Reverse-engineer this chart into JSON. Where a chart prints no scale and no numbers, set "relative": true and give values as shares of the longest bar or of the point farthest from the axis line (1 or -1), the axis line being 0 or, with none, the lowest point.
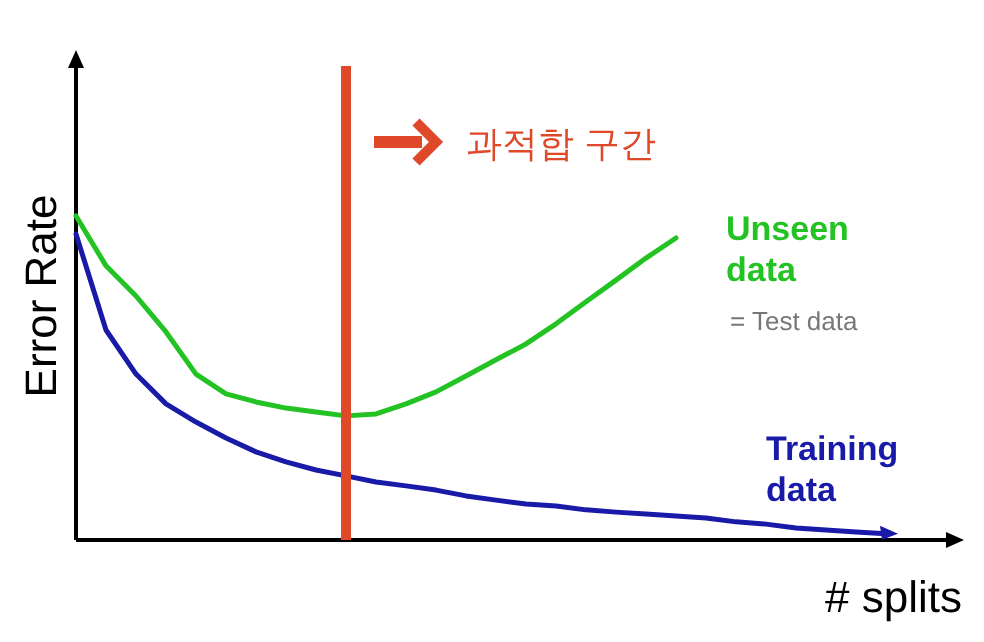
{
  "chart_data": {
    "type": "line",
    "relative": true,
    "xlabel": "# splits",
    "ylabel": "Error Rate",
    "categories": [
      null,
      null,
      null,
      null,
      null,
      null,
      null,
      null,
      null,
      null,
      null,
      null,
      null,
      null,
      null,
      null,
      null,
      null,
      null,
      null,
      null,
      null,
      null,
      null,
      null,
      null,
      null,
      null
    ],
    "series": [
      {
        "name": "Unseen\ndata",
        "color": "#22c322",
        "values": [
          1,
          0.846,
          0.753,
          0.642,
          0.512,
          0.451,
          0.426,
          0.407,
          0.395,
          0.383,
          0.389,
          0.42,
          0.457,
          0.506,
          0.556,
          0.605,
          0.667,
          0.735,
          0.802,
          0.87,
          0.932,
          null,
          null,
          null,
          null,
          null,
          null,
          null
        ]
      },
      {
        "name": "Training\ndata",
        "color": "#1a1aa8",
        "values": [
          0.944,
          0.648,
          0.512,
          0.42,
          0.364,
          0.315,
          0.272,
          0.241,
          0.216,
          0.198,
          0.179,
          0.167,
          0.154,
          0.136,
          0.123,
          0.111,
          0.105,
          0.093,
          0.086,
          0.08,
          0.074,
          0.068,
          0.056,
          0.049,
          0.037,
          0.031,
          0.025,
          0.019
        ]
      }
    ],
    "annotations": [
      "과적합 구간",
      "= Test data"
    ],
    "legend": false,
    "grid": false,
    "marker": "none",
    "line_style": "solid"
  }
}
